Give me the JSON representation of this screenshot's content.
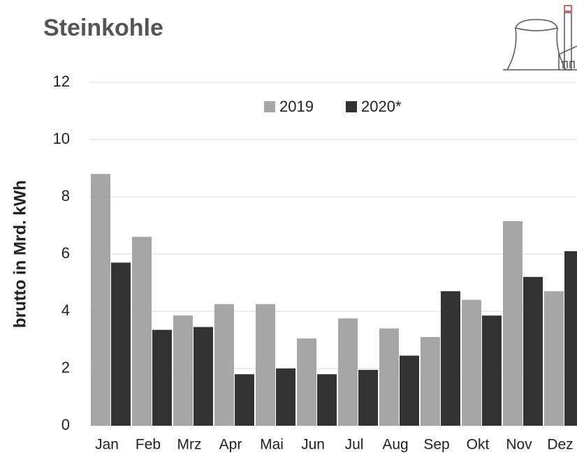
{
  "chart_data": {
    "type": "bar",
    "title": "Steinkohle",
    "y_label": "brutto in  Mrd. kWh",
    "categories": [
      "Jan",
      "Feb",
      "Mrz",
      "Apr",
      "Mai",
      "Jun",
      "Jul",
      "Aug",
      "Sep",
      "Okt",
      "Nov",
      "Dez"
    ],
    "series": [
      {
        "name": "2019",
        "color": "#a6a6a6",
        "values": [
          8.8,
          6.6,
          3.85,
          4.25,
          4.25,
          3.05,
          3.75,
          3.4,
          3.1,
          4.4,
          7.15,
          4.7
        ]
      },
      {
        "name": "2020*",
        "color": "#333333",
        "values": [
          5.7,
          3.35,
          3.45,
          1.8,
          2.0,
          1.8,
          1.95,
          2.45,
          4.7,
          3.85,
          5.2,
          6.1
        ]
      }
    ],
    "ylim": [
      0,
      12
    ],
    "yticks": [
      0,
      2,
      4,
      6,
      8,
      10,
      12
    ],
    "grid": true,
    "legend": "top"
  }
}
